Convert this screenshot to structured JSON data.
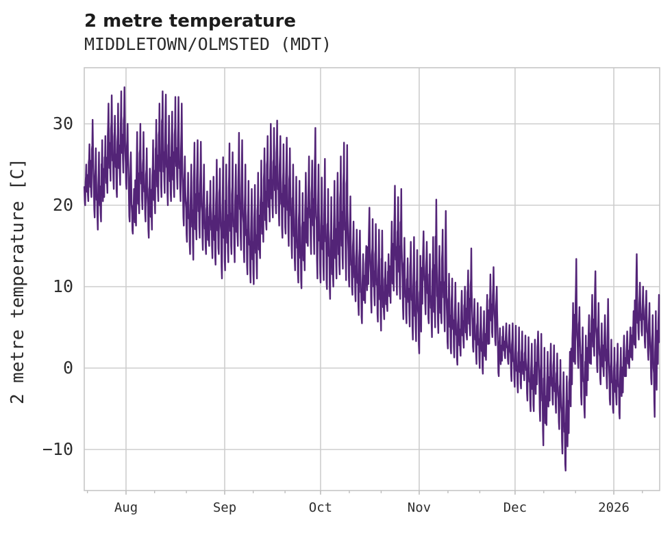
{
  "header": {
    "title": "2 metre temperature",
    "subtitle": "MIDDLETOWN/OLMSTED (MDT)"
  },
  "colors": {
    "line": "#532477",
    "grid": "#cdcdcd",
    "spine": "#c6c6c6",
    "tick_mark": "#bdbdbd",
    "title_text": "#1c1c1c",
    "axis_text": "#2e2e2e",
    "background": "#ffffff"
  },
  "chart_data": {
    "type": "line",
    "title": "2 metre temperature",
    "subtitle": "MIDDLETOWN/OLMSTED (MDT)",
    "xlabel": "",
    "ylabel": "2 metre temperature [C]",
    "grid": true,
    "legend": false,
    "line_color": "#532477",
    "ylim": [
      -15.1,
      36.9
    ],
    "y_ticks": [
      {
        "label": "30",
        "value": 30
      },
      {
        "label": "20",
        "value": 20
      },
      {
        "label": "10",
        "value": 10
      },
      {
        "label": "0",
        "value": 0
      },
      {
        "label": "−10",
        "value": -10
      }
    ],
    "x_unit": "day_index (0 = first plotted day, ~mid-July; axis spans ~181 days to mid-January)",
    "xlim_days": [
      0,
      180.8
    ],
    "x_ticks": [
      {
        "label": "Aug",
        "day": 13.13
      },
      {
        "label": "Sep",
        "day": 44.13
      },
      {
        "label": "Oct",
        "day": 74.26
      },
      {
        "label": "Nov",
        "day": 105.26
      },
      {
        "label": "Dec",
        "day": 135.39
      },
      {
        "label": "2026",
        "day": 166.42
      }
    ],
    "x_minor_tick_days": [
      1,
      22.1,
      32.1,
      53.1,
      63.1,
      83.3,
      93.3,
      114.3,
      124.3,
      144.4,
      154.4,
      175.4
    ],
    "sampling": "hourly temperature line approximated by daily high/low envelope read from the plot",
    "daily_high": [
      25,
      27.5,
      30.5,
      27,
      26.5,
      28,
      28.5,
      32.5,
      33.5,
      31,
      32.5,
      34,
      34.5,
      30,
      26.5,
      22,
      29,
      30,
      29,
      27,
      24.5,
      28,
      30.5,
      32.5,
      34,
      33.6,
      31,
      31.5,
      33.3,
      33.3,
      32.5,
      26,
      24,
      25,
      27.7,
      28,
      27.8,
      25,
      21.7,
      23,
      23.5,
      25.6,
      24.5,
      25.9,
      25,
      27.6,
      26.5,
      25,
      28.9,
      28,
      25,
      23,
      22,
      22.5,
      24,
      25.5,
      27,
      28.5,
      30,
      29.5,
      30.4,
      28.5,
      27.5,
      28.3,
      27,
      25,
      23.5,
      23,
      21.5,
      24,
      26,
      25.5,
      29.5,
      25,
      23.4,
      25.7,
      22,
      21,
      23,
      24,
      26,
      27.7,
      27.4,
      21.1,
      18,
      17,
      16.9,
      14,
      15,
      19.7,
      18.3,
      17.7,
      17,
      16.9,
      13,
      14,
      18,
      22.4,
      21,
      22,
      16,
      13.5,
      15.5,
      16.1,
      14.5,
      13.8,
      16.8,
      15.5,
      14,
      16.1,
      20.7,
      15,
      17,
      19.3,
      11.6,
      11,
      10.5,
      8,
      9.5,
      10,
      12,
      14.7,
      8.5,
      8,
      7.5,
      7,
      9,
      11.5,
      12.4,
      10,
      4.9,
      5.1,
      5.5,
      5.3,
      5.5,
      5.2,
      5,
      4.5,
      4,
      3.8,
      3,
      3.5,
      4.5,
      4.2,
      2.5,
      2,
      3,
      2.8,
      1.8,
      1,
      -0.5,
      -1,
      2,
      8,
      13.4,
      7.5,
      5,
      4,
      6.5,
      9,
      11.9,
      8,
      5.5,
      6.5,
      8.5,
      3.5,
      2.5,
      3,
      2.5,
      4,
      4.5,
      5,
      7,
      14,
      10.5,
      10,
      9.5,
      8,
      6.5,
      7,
      9
    ],
    "daily_low": [
      20,
      20.5,
      21,
      18.5,
      17,
      18,
      21,
      21.5,
      23,
      22,
      21,
      22.5,
      24,
      22,
      18,
      16.5,
      17.5,
      19,
      19.5,
      18,
      16,
      17,
      19,
      20.5,
      21,
      21.5,
      20,
      20.5,
      21,
      22,
      20.5,
      17.5,
      15.5,
      14,
      13.3,
      15.8,
      16,
      14.5,
      14,
      15,
      13.5,
      12.7,
      14,
      11,
      12,
      13,
      14,
      13,
      15,
      14.5,
      13,
      11.5,
      10.5,
      10.3,
      11,
      13.5,
      15.5,
      17,
      18,
      18.5,
      19,
      17.5,
      16,
      16.5,
      15,
      13.5,
      12,
      10.5,
      9.8,
      12,
      15,
      14,
      14,
      11,
      10.5,
      10.8,
      9.7,
      8.5,
      10,
      11,
      11.5,
      12.2,
      10.8,
      10,
      9,
      8.2,
      6.5,
      5.5,
      8,
      10.3,
      6.8,
      7.7,
      5.7,
      4.6,
      6,
      7,
      8,
      9.5,
      9,
      8.5,
      6,
      5.5,
      5.1,
      3.5,
      3.3,
      1.8,
      7.9,
      6.6,
      5.5,
      3.8,
      5,
      4.3,
      5.5,
      4.5,
      2.4,
      1.8,
      1.3,
      0.4,
      1.5,
      2.5,
      3.5,
      4,
      2,
      0.5,
      0,
      -0.7,
      1,
      3,
      3.8,
      2.8,
      -1,
      0.9,
      1.2,
      0.5,
      -1.6,
      -2.3,
      -3,
      -2.5,
      -1.5,
      -4,
      -5.3,
      -5.3,
      -2,
      -6.5,
      -9.5,
      -7,
      -4,
      -4.5,
      -5.5,
      -7.5,
      -10.5,
      -12.6,
      -8,
      -2,
      0.5,
      0,
      -4.5,
      -6.1,
      -1.5,
      0.5,
      1.5,
      -0.5,
      -2,
      -1,
      -2.5,
      -4.5,
      -5.5,
      -4.5,
      -6.2,
      -3,
      -1,
      0,
      1,
      2.5,
      3.5,
      4,
      2.5,
      1,
      -2,
      -6,
      0.5
    ]
  }
}
